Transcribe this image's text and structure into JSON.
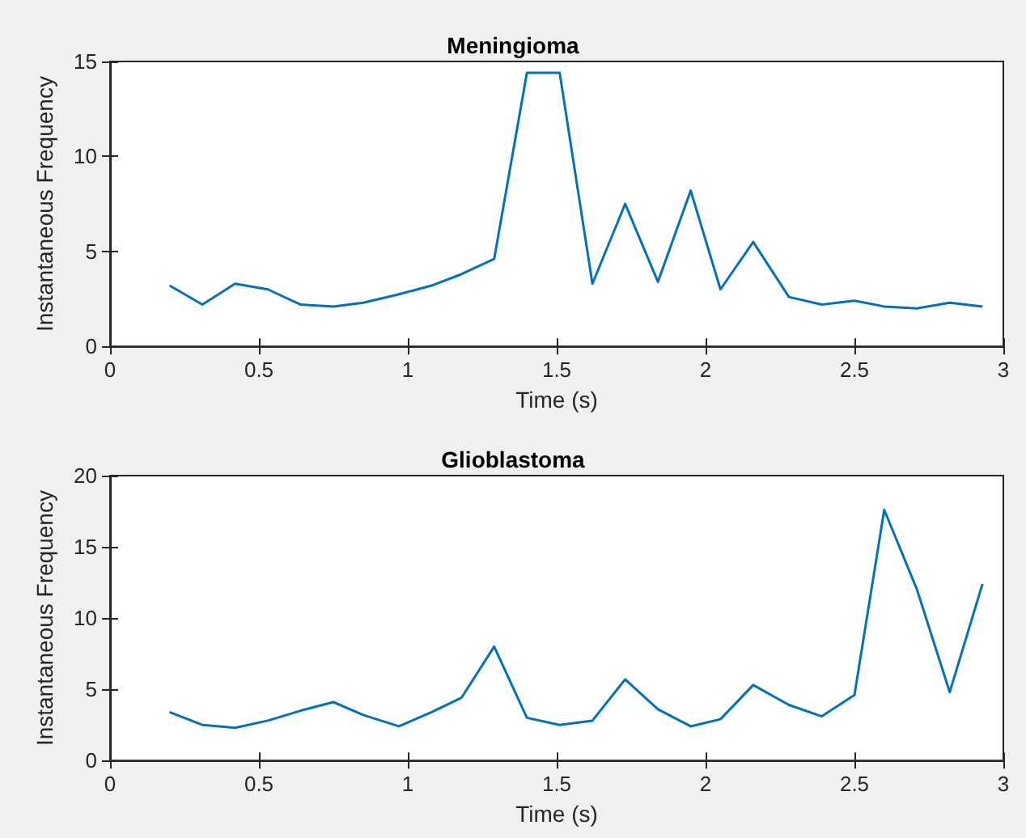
{
  "chart_data": [
    {
      "type": "line",
      "title": "Meningioma",
      "xlabel": "Time (s)",
      "ylabel": "Instantaneous Frequency",
      "color": "#0072bd",
      "marker": "none",
      "grid": false,
      "x": [
        0.2,
        0.31,
        0.42,
        0.53,
        0.64,
        0.75,
        0.85,
        0.96,
        1.08,
        1.18,
        1.29,
        1.4,
        1.51,
        1.62,
        1.73,
        1.84,
        1.95,
        2.05,
        2.16,
        2.28,
        2.39,
        2.5,
        2.6,
        2.71,
        2.82,
        2.93
      ],
      "values": [
        3.2,
        2.2,
        3.3,
        3.0,
        2.2,
        2.1,
        2.3,
        2.7,
        3.2,
        3.8,
        4.6,
        14.4,
        14.4,
        3.3,
        7.5,
        3.4,
        8.2,
        3.0,
        5.5,
        2.6,
        2.2,
        2.4,
        2.1,
        2.0,
        2.3,
        2.1
      ],
      "xlim": [
        0,
        3
      ],
      "xticks": [
        0,
        0.5,
        1,
        1.5,
        2,
        2.5,
        3
      ],
      "ylim": [
        0,
        15
      ],
      "yticks": [
        0,
        5,
        10,
        15
      ]
    },
    {
      "type": "line",
      "title": "Glioblastoma",
      "xlabel": "Time (s)",
      "ylabel": "Instantaneous Frequency",
      "color": "#0072bd",
      "marker": "none",
      "grid": false,
      "x": [
        0.2,
        0.31,
        0.42,
        0.53,
        0.64,
        0.75,
        0.85,
        0.97,
        1.08,
        1.18,
        1.29,
        1.4,
        1.51,
        1.62,
        1.73,
        1.84,
        1.95,
        2.05,
        2.16,
        2.28,
        2.39,
        2.5,
        2.6,
        2.71,
        2.82,
        2.93
      ],
      "values": [
        3.4,
        2.5,
        2.3,
        2.8,
        3.5,
        4.1,
        3.2,
        2.4,
        3.4,
        4.4,
        8.0,
        3.0,
        2.5,
        2.8,
        5.7,
        3.6,
        2.4,
        2.9,
        5.3,
        3.9,
        3.1,
        4.6,
        17.6,
        12.0,
        4.8,
        12.4
      ],
      "xlim": [
        0,
        3
      ],
      "xticks": [
        0,
        0.5,
        1,
        1.5,
        2,
        2.5,
        3
      ],
      "ylim": [
        0,
        20
      ],
      "yticks": [
        0,
        5,
        10,
        15,
        20
      ]
    }
  ]
}
